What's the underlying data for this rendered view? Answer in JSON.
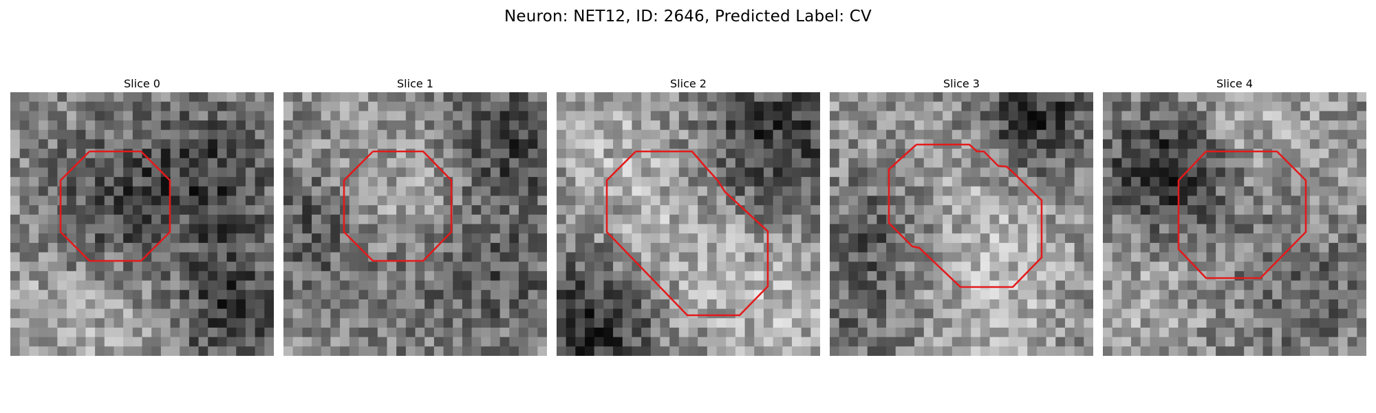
{
  "figure": {
    "title": "Neuron: NET12, ID: 2646, Predicted Label: CV"
  },
  "panels": [
    {
      "title": "Slice 0",
      "outline_color": "#e31a1c"
    },
    {
      "title": "Slice 1",
      "outline_color": "#e31a1c"
    },
    {
      "title": "Slice 2",
      "outline_color": "#e31a1c"
    },
    {
      "title": "Slice 3",
      "outline_color": "#e31a1c"
    },
    {
      "title": "Slice 4",
      "outline_color": "#e31a1c"
    }
  ],
  "colormap": "grayscale"
}
